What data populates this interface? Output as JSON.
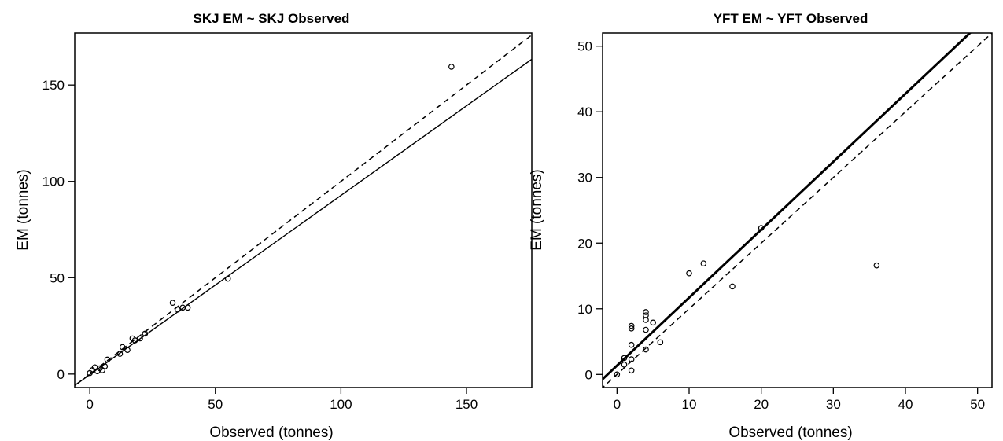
{
  "chart_data": [
    {
      "type": "scatter",
      "title": "SKJ EM ~ SKJ Observed",
      "xlabel": "Observed (tonnes)",
      "ylabel": "EM (tonnes)",
      "xlim": [
        -6,
        176
      ],
      "ylim": [
        -7,
        177
      ],
      "xticks": [
        0,
        50,
        100,
        150
      ],
      "yticks": [
        0,
        50,
        100,
        150
      ],
      "grid": false,
      "legend": "none",
      "series": [
        {
          "marker": "open-circle",
          "points": [
            [
              0,
              0.5
            ],
            [
              1,
              2
            ],
            [
              2,
              3.5
            ],
            [
              3,
              1.5
            ],
            [
              4,
              3
            ],
            [
              5,
              2
            ],
            [
              6,
              4
            ],
            [
              7,
              7.5
            ],
            [
              12,
              10.5
            ],
            [
              13,
              14
            ],
            [
              15,
              12.5
            ],
            [
              17,
              18.5
            ],
            [
              18,
              17.5
            ],
            [
              20,
              18.5
            ],
            [
              22,
              21
            ],
            [
              33,
              37
            ],
            [
              35,
              33.5
            ],
            [
              37,
              34.5
            ],
            [
              39,
              34.5
            ],
            [
              55,
              49.5
            ],
            [
              144,
              159.5
            ]
          ]
        }
      ],
      "lines": [
        {
          "kind": "identity",
          "style": "dashed",
          "slope": 1,
          "intercept": 0,
          "color": "#000000"
        },
        {
          "kind": "fit",
          "style": "solid",
          "slope": 0.93,
          "intercept": -0.3,
          "color": "#000000"
        }
      ]
    },
    {
      "type": "scatter",
      "title": "YFT EM ~ YFT Observed",
      "xlabel": "Observed (tonnes)",
      "ylabel": "EM (tonnes)",
      "xlim": [
        -2,
        52
      ],
      "ylim": [
        -2,
        52
      ],
      "xticks": [
        0,
        10,
        20,
        30,
        40,
        50
      ],
      "yticks": [
        0,
        10,
        20,
        30,
        40,
        50
      ],
      "grid": false,
      "legend": "none",
      "series": [
        {
          "marker": "open-circle",
          "points": [
            [
              0,
              0
            ],
            [
              1,
              1.5
            ],
            [
              1,
              2.5
            ],
            [
              2,
              0.6
            ],
            [
              2,
              2.3
            ],
            [
              2,
              4.5
            ],
            [
              2,
              7
            ],
            [
              2,
              7.4
            ],
            [
              4,
              3.8
            ],
            [
              4,
              6.8
            ],
            [
              4,
              8.3
            ],
            [
              4,
              9
            ],
            [
              4,
              9.5
            ],
            [
              5,
              7.9
            ],
            [
              6,
              4.9
            ],
            [
              10,
              15.4
            ],
            [
              12,
              16.9
            ],
            [
              16,
              13.4
            ],
            [
              20,
              22.3
            ],
            [
              36,
              16.6
            ]
          ]
        }
      ],
      "lines": [
        {
          "kind": "identity",
          "style": "dashed",
          "slope": 1,
          "intercept": 0,
          "color": "#000000"
        },
        {
          "kind": "fit",
          "style": "solid-thick",
          "slope": 1.035,
          "intercept": 1.35,
          "color": "#000000"
        }
      ]
    }
  ]
}
